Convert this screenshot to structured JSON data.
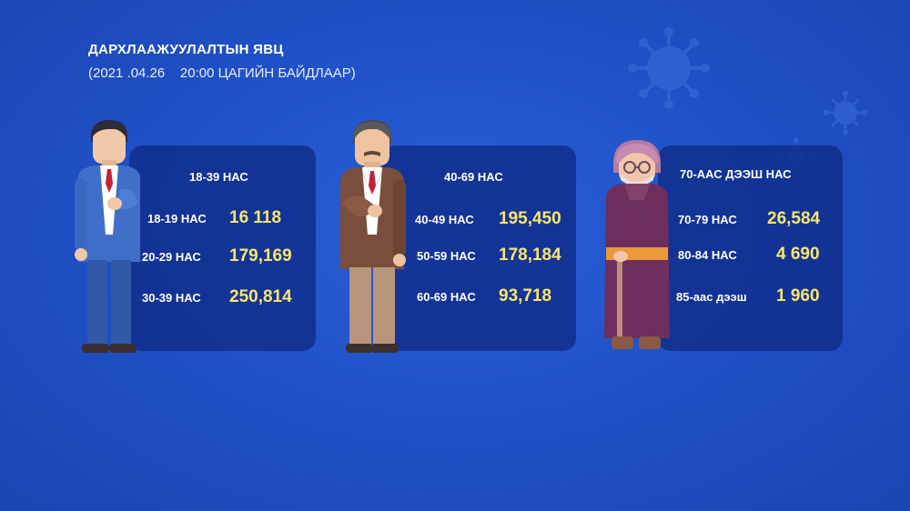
{
  "header": {
    "title": "ДАРХЛААЖУУЛАЛТЫН ЯВЦ",
    "subtitle": "(2021 .04.26    20:00 ЦАГИЙН БАЙДЛААР)"
  },
  "colors": {
    "background": "#1f4fc4",
    "card": "#102e8c",
    "value": "#fbe66a"
  },
  "groups": [
    {
      "heading": "18-39 НАС",
      "rows": [
        {
          "label": "18-19 НАС",
          "value": "16 118"
        },
        {
          "label": "20-29 НАС",
          "value": "179,169"
        },
        {
          "label": "30-39 НАС",
          "value": "250,814"
        }
      ]
    },
    {
      "heading": "40-69 НАС",
      "rows": [
        {
          "label": "40-49 НАС",
          "value": "195,450"
        },
        {
          "label": "50-59 НАС",
          "value": "178,184"
        },
        {
          "label": "60-69 НАС",
          "value": "93,718"
        }
      ]
    },
    {
      "heading": "70-ААС ДЭЭШ НАС",
      "rows": [
        {
          "label": "70-79 НАС",
          "value": "26,584"
        },
        {
          "label": "80-84 НАС",
          "value": "4 690"
        },
        {
          "label": "85-аас дээш",
          "value": "1 960"
        }
      ]
    }
  ]
}
